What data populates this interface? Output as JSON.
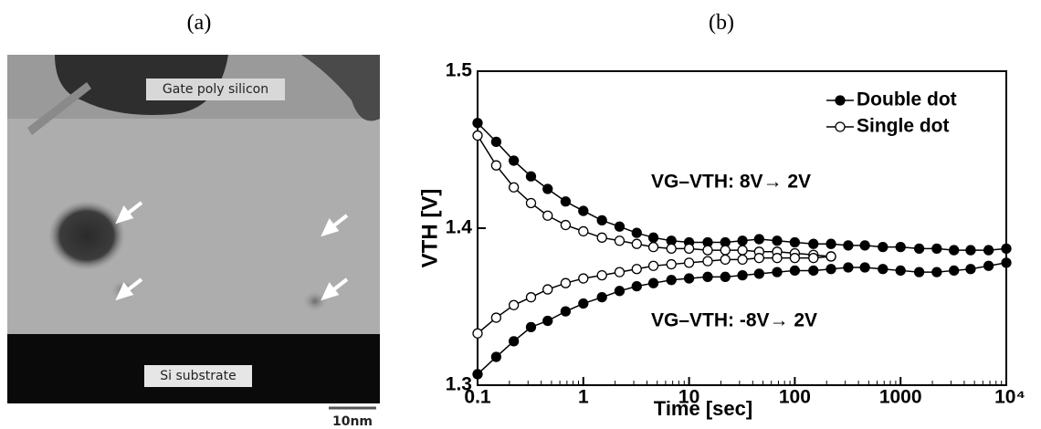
{
  "panel_a": {
    "label": "(a)",
    "gate_label": "Gate poly silicon",
    "substrate_label": "Si substrate",
    "scale_bar": "10nm"
  },
  "chart_data": {
    "type": "line",
    "panel_label": "(b)",
    "xlabel": "Time [sec]",
    "ylabel": "VTH [V]",
    "xscale": "log",
    "xlim": [
      0.1,
      10000
    ],
    "ylim": [
      1.3,
      1.5
    ],
    "xticks": [
      0.1,
      1,
      10,
      100,
      1000,
      {
        "value": 10000,
        "label": "10⁴"
      }
    ],
    "yticks": [
      1.3,
      1.4,
      1.5
    ],
    "legend": "upper right",
    "annotations": [
      "VG–VTH: 8V→ 2V",
      "VG–VTH: -8V→ 2V"
    ],
    "series": [
      {
        "name": "Double dot",
        "color": "#000000",
        "marker": "filled",
        "curves": [
          {
            "x": [
              0.1,
              0.15,
              0.22,
              0.32,
              0.46,
              0.68,
              1,
              1.5,
              2.2,
              3.2,
              4.6,
              6.8,
              10,
              15,
              22,
              32,
              46,
              68,
              100,
              150,
              220,
              320,
              460,
              680,
              1000,
              1500,
              2200,
              3200,
              4600,
              6800,
              10000
            ],
            "values": [
              1.467,
              1.455,
              1.443,
              1.433,
              1.425,
              1.417,
              1.411,
              1.405,
              1.401,
              1.397,
              1.394,
              1.392,
              1.391,
              1.391,
              1.391,
              1.392,
              1.393,
              1.392,
              1.391,
              1.39,
              1.39,
              1.389,
              1.389,
              1.388,
              1.388,
              1.387,
              1.387,
              1.386,
              1.386,
              1.386,
              1.387
            ]
          },
          {
            "x": [
              0.1,
              0.15,
              0.22,
              0.32,
              0.46,
              0.68,
              1,
              1.5,
              2.2,
              3.2,
              4.6,
              6.8,
              10,
              15,
              22,
              32,
              46,
              68,
              100,
              150,
              220,
              320,
              460,
              680,
              1000,
              1500,
              2200,
              3200,
              4600,
              6800,
              10000
            ],
            "values": [
              1.307,
              1.318,
              1.328,
              1.337,
              1.341,
              1.347,
              1.352,
              1.356,
              1.36,
              1.363,
              1.365,
              1.367,
              1.368,
              1.369,
              1.369,
              1.37,
              1.371,
              1.372,
              1.373,
              1.373,
              1.374,
              1.375,
              1.375,
              1.374,
              1.373,
              1.372,
              1.372,
              1.373,
              1.374,
              1.376,
              1.378
            ]
          }
        ]
      },
      {
        "name": "Single dot",
        "color": "#000000",
        "marker": "open",
        "curves": [
          {
            "x": [
              0.1,
              0.15,
              0.22,
              0.32,
              0.46,
              0.68,
              1,
              1.5,
              2.2,
              3.2,
              4.6,
              6.8,
              10,
              15,
              22,
              32,
              46,
              68,
              100,
              150,
              220
            ],
            "values": [
              1.459,
              1.44,
              1.426,
              1.416,
              1.408,
              1.402,
              1.398,
              1.394,
              1.392,
              1.39,
              1.388,
              1.387,
              1.387,
              1.386,
              1.386,
              1.386,
              1.385,
              1.385,
              1.384,
              1.383,
              1.382
            ]
          },
          {
            "x": [
              0.1,
              0.15,
              0.22,
              0.32,
              0.46,
              0.68,
              1,
              1.5,
              2.2,
              3.2,
              4.6,
              6.8,
              10,
              15,
              22,
              32,
              46,
              68,
              100,
              150,
              220
            ],
            "values": [
              1.333,
              1.343,
              1.351,
              1.356,
              1.361,
              1.365,
              1.368,
              1.37,
              1.372,
              1.374,
              1.376,
              1.377,
              1.378,
              1.379,
              1.38,
              1.38,
              1.381,
              1.381,
              1.381,
              1.381,
              1.382
            ]
          }
        ]
      }
    ]
  }
}
